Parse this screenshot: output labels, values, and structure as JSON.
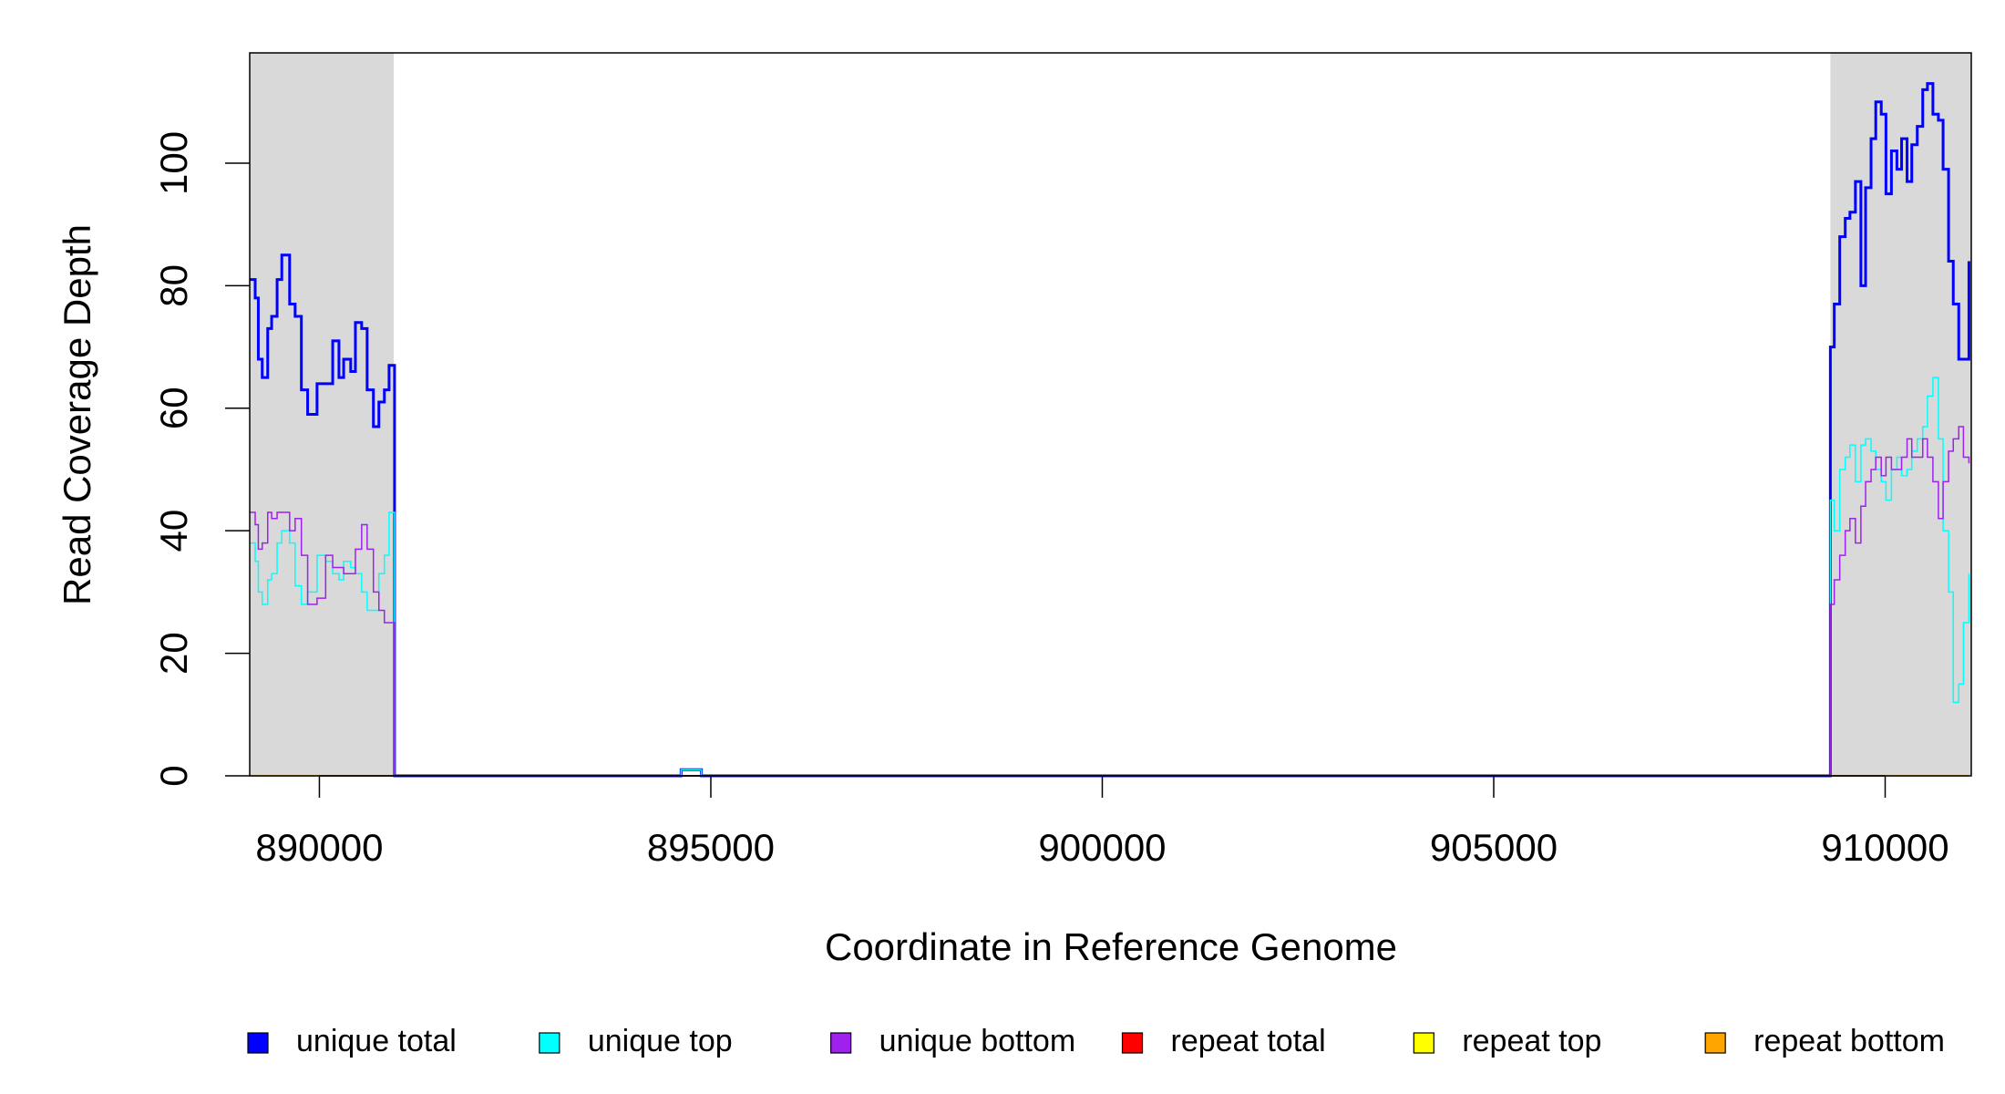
{
  "chart_data": {
    "type": "line",
    "xlabel": "Coordinate in Reference Genome",
    "ylabel": "Read Coverage Depth",
    "xlim": [
      889110,
      911100
    ],
    "ylim": [
      0,
      118
    ],
    "xticks": [
      890000,
      895000,
      900000,
      905000,
      910000
    ],
    "yticks": [
      0,
      20,
      40,
      60,
      80,
      100
    ],
    "shaded_regions": [
      [
        889110,
        890950
      ],
      [
        909300,
        911100
      ]
    ],
    "shade_color": "#d9d9d9",
    "step": true,
    "legend": "bottom",
    "x": [
      889110,
      889180,
      889220,
      889270,
      889340,
      889390,
      889460,
      889520,
      889620,
      889690,
      889770,
      889850,
      889970,
      890080,
      890170,
      890250,
      890310,
      890400,
      890460,
      890540,
      890610,
      890690,
      890760,
      890830,
      890890,
      890960,
      894620,
      894880,
      909300,
      909350,
      909420,
      909490,
      909550,
      909620,
      909690,
      909750,
      909820,
      909880,
      909950,
      910010,
      910080,
      910150,
      910210,
      910280,
      910340,
      910410,
      910480,
      910540,
      910610,
      910680,
      910740,
      910810,
      910870,
      910940,
      911000,
      911070
    ],
    "series": [
      {
        "name": "unique total",
        "color": "#0000ff",
        "width": 3,
        "values": [
          81,
          78,
          68,
          65,
          73,
          75,
          81,
          85,
          77,
          75,
          63,
          59,
          64,
          64,
          71,
          65,
          68,
          66,
          74,
          73,
          63,
          57,
          61,
          63,
          67,
          0,
          1,
          0,
          70,
          77,
          88,
          91,
          92,
          97,
          80,
          96,
          104,
          110,
          108,
          95,
          102,
          99,
          104,
          97,
          103,
          106,
          112,
          113,
          108,
          107,
          99,
          84,
          77,
          68,
          68,
          84
        ]
      },
      {
        "name": "unique top",
        "color": "#00ffff",
        "width": 1.5,
        "values": [
          38,
          35,
          30,
          28,
          32,
          33,
          38,
          40,
          38,
          31,
          28,
          30,
          36,
          35,
          33,
          32,
          35,
          34,
          33,
          30,
          27,
          27,
          33,
          36,
          43,
          0,
          1,
          0,
          45,
          40,
          50,
          52,
          54,
          48,
          54,
          55,
          53,
          50,
          48,
          45,
          50,
          52,
          49,
          50,
          53,
          55,
          57,
          62,
          65,
          55,
          40,
          30,
          12,
          15,
          25,
          33
        ]
      },
      {
        "name": "unique bottom",
        "color": "#a020f0",
        "width": 1.5,
        "values": [
          43,
          41,
          37,
          38,
          43,
          42,
          43,
          43,
          40,
          42,
          36,
          28,
          29,
          36,
          34,
          34,
          33,
          33,
          37,
          41,
          37,
          30,
          27,
          25,
          25,
          0,
          0,
          0,
          28,
          32,
          36,
          40,
          42,
          38,
          44,
          48,
          50,
          52,
          49,
          52,
          50,
          50,
          52,
          55,
          52,
          52,
          55,
          52,
          48,
          42,
          48,
          53,
          55,
          57,
          52,
          51
        ]
      },
      {
        "name": "repeat total",
        "color": "#ff0000",
        "width": 1.5,
        "values": [
          0,
          0,
          0,
          0,
          0,
          0,
          0,
          0,
          0,
          0,
          0,
          0,
          0,
          0,
          0,
          0,
          0,
          0,
          0,
          0,
          0,
          0,
          0,
          0,
          0,
          0,
          0,
          0,
          0,
          0,
          0,
          0,
          0,
          0,
          0,
          0,
          0,
          0,
          0,
          0,
          0,
          0,
          0,
          0,
          0,
          0,
          0,
          0,
          0,
          0,
          0,
          0,
          0,
          0,
          0,
          0
        ]
      },
      {
        "name": "repeat top",
        "color": "#ffff00",
        "width": 1.5,
        "values": [
          0,
          0,
          0,
          0,
          0,
          0,
          0,
          0,
          0,
          0,
          0,
          0,
          0,
          0,
          0,
          0,
          0,
          0,
          0,
          0,
          0,
          0,
          0,
          0,
          0,
          0,
          0,
          0,
          0,
          0,
          0,
          0,
          0,
          0,
          0,
          0,
          0,
          0,
          0,
          0,
          0,
          0,
          0,
          0,
          0,
          0,
          0,
          0,
          0,
          0,
          0,
          0,
          0,
          0,
          0,
          0
        ]
      },
      {
        "name": "repeat bottom",
        "color": "#ffa500",
        "width": 1.5,
        "values": [
          0,
          0,
          0,
          0,
          0,
          0,
          0,
          0,
          0,
          0,
          0,
          0,
          0,
          0,
          0,
          0,
          0,
          0,
          0,
          0,
          0,
          0,
          0,
          0,
          0,
          0,
          0,
          0,
          0,
          0,
          0,
          0,
          0,
          0,
          0,
          0,
          0,
          0,
          0,
          0,
          0,
          0,
          0,
          0,
          0,
          0,
          0,
          0,
          0,
          0,
          0,
          0,
          0,
          0,
          0,
          0
        ]
      }
    ]
  }
}
